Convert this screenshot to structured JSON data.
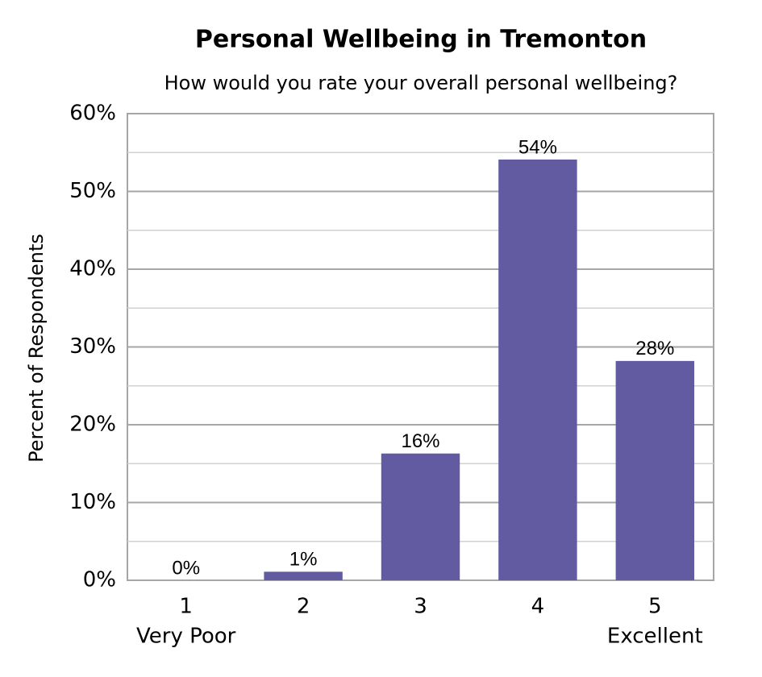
{
  "chart_data": {
    "type": "bar",
    "title": "Personal Wellbeing in Tremonton",
    "subtitle": "How would you rate your overall personal wellbeing?",
    "y_label": "Percent of Respondents",
    "categories": [
      "1",
      "2",
      "3",
      "4",
      "5"
    ],
    "category_sublabels": [
      "Very Poor",
      null,
      null,
      null,
      "Excellent"
    ],
    "values": [
      0,
      1.1,
      16.3,
      54.1,
      28.2
    ],
    "value_labels": [
      "0%",
      "1%",
      "16%",
      "54%",
      "28%"
    ],
    "color": "#635ba2",
    "ylim": [
      0,
      60
    ],
    "yticks": [
      {
        "value": 0,
        "label": "0%"
      },
      {
        "value": 10,
        "label": "10%"
      },
      {
        "value": 20,
        "label": "20%"
      },
      {
        "value": 30,
        "label": "30%"
      },
      {
        "value": 40,
        "label": "40%"
      },
      {
        "value": 50,
        "label": "50%"
      },
      {
        "value": 60,
        "label": "60%"
      }
    ],
    "minor_yticks": [
      5,
      15,
      25,
      35,
      45,
      55
    ],
    "grid": true
  }
}
